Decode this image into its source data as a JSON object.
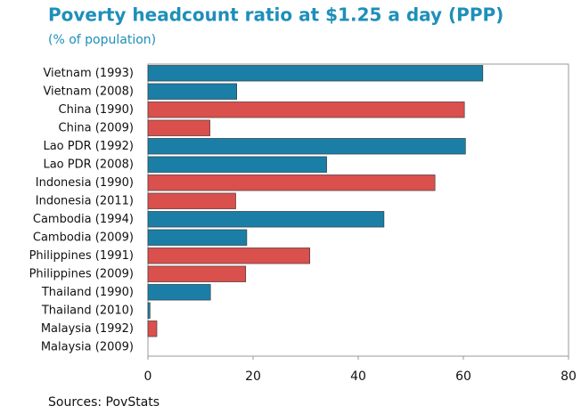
{
  "chart_data": {
    "type": "hbar",
    "title": "Poverty headcount ratio at $1.25 a day (PPP)",
    "subtitle": "(% of population)",
    "categories": [
      "Vietnam (1993)",
      "Vietnam (2008)",
      "China (1990)",
      "China (2009)",
      "Lao PDR (1992)",
      "Lao PDR (2008)",
      "Indonesia (1990)",
      "Indonesia (2011)",
      "Cambodia (1994)",
      "Cambodia (2009)",
      "Philippines (1991)",
      "Philippines (2009)",
      "Thailand (1990)",
      "Thailand (2010)",
      "Malaysia (1992)",
      "Malaysia (2009)"
    ],
    "values": [
      63.7,
      16.9,
      60.2,
      11.8,
      60.4,
      34,
      54.6,
      16.7,
      44.9,
      18.8,
      30.8,
      18.6,
      11.9,
      0.4,
      1.7,
      0
    ],
    "colors": [
      "#1b7ea6",
      "#1b7ea6",
      "#d9504d",
      "#d9504d",
      "#1b7ea6",
      "#1b7ea6",
      "#d9504d",
      "#d9504d",
      "#1b7ea6",
      "#1b7ea6",
      "#d9504d",
      "#d9504d",
      "#1b7ea6",
      "#1b7ea6",
      "#d9504d",
      "#d9504d"
    ],
    "xlim": [
      0,
      80
    ],
    "xticks": [
      0,
      20,
      40,
      60,
      80
    ],
    "source": "Sources: PovStats"
  }
}
